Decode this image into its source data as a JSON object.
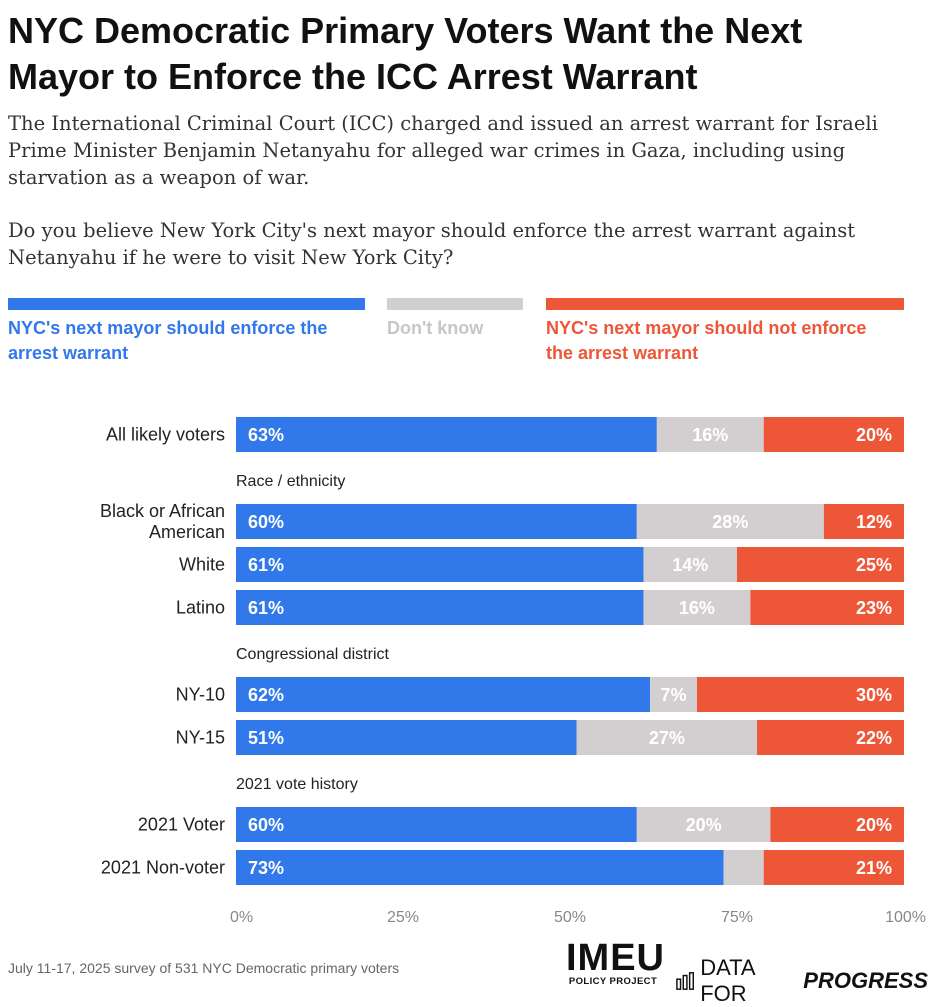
{
  "title": "NYC Democratic Primary Voters Want the Next Mayor to Enforce the ICC Arrest Warrant",
  "description": "The International Criminal Court (ICC) charged and issued an arrest warrant for Israeli Prime Minister Benjamin Netanyahu for alleged war crimes in Gaza, including using starvation as a weapon of war.",
  "question": "Do you believe New York City's next mayor should enforce the arrest warrant against Netanyahu if he were to visit New York City?",
  "colors": {
    "enforce": "#3179EA",
    "dont_know": "#D3CFD0",
    "not_enforce": "#EE5638"
  },
  "legend": {
    "enforce": "NYC's next mayor should enforce the arrest warrant",
    "dont_know": "Don't know",
    "not_enforce": "NYC's next mayor should not enforce the arrest warrant"
  },
  "chart_data": {
    "type": "bar",
    "orientation": "horizontal",
    "stacked": true,
    "xlim": [
      0,
      100
    ],
    "x_ticks": [
      "0%",
      "25%",
      "50%",
      "75%",
      "100%"
    ],
    "grid": false,
    "legend_position": "top",
    "series": [
      {
        "name": "NYC's next mayor should enforce the arrest warrant",
        "key": "enforce"
      },
      {
        "name": "Don't know",
        "key": "dont_know"
      },
      {
        "name": "NYC's next mayor should not enforce the arrest warrant",
        "key": "not_enforce"
      }
    ],
    "groups": [
      {
        "heading": "",
        "rows": [
          {
            "label": "All likely voters",
            "values": [
              63,
              16,
              20
            ],
            "labels": [
              "63%",
              "16%",
              "20%"
            ]
          }
        ]
      },
      {
        "heading": "Race / ethnicity",
        "rows": [
          {
            "label": "Black or African American",
            "values": [
              60,
              28,
              12
            ],
            "labels": [
              "60%",
              "28%",
              "12%"
            ]
          },
          {
            "label": "White",
            "values": [
              61,
              14,
              25
            ],
            "labels": [
              "61%",
              "14%",
              "25%"
            ]
          },
          {
            "label": "Latino",
            "values": [
              61,
              16,
              23
            ],
            "labels": [
              "61%",
              "16%",
              "23%"
            ]
          }
        ]
      },
      {
        "heading": "Congressional district",
        "rows": [
          {
            "label": "NY-10",
            "values": [
              62,
              7,
              30
            ],
            "labels": [
              "62%",
              "7%",
              "30%"
            ]
          },
          {
            "label": "NY-15",
            "values": [
              51,
              27,
              22
            ],
            "labels": [
              "51%",
              "27%",
              "22%"
            ]
          }
        ]
      },
      {
        "heading": "2021 vote history",
        "rows": [
          {
            "label": "2021 Voter",
            "values": [
              60,
              20,
              20
            ],
            "labels": [
              "60%",
              "20%",
              "20%"
            ]
          },
          {
            "label": "2021 Non-voter",
            "values": [
              73,
              6,
              21
            ],
            "labels": [
              "73%",
              "",
              "21%"
            ]
          }
        ]
      }
    ]
  },
  "footer": {
    "note": "July 11-17, 2025 survey of 531 NYC Democratic primary voters",
    "imeu_big": "IMEU",
    "imeu_small": "POLICY PROJECT",
    "dfp_plain": "DATA FOR",
    "dfp_emph": "PROGRESS"
  }
}
